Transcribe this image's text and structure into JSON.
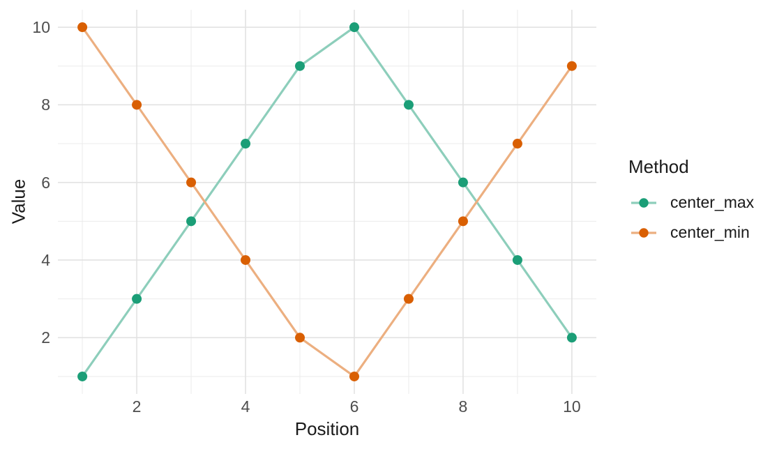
{
  "figure": {
    "background": "#ffffff"
  },
  "chart_data": {
    "type": "line",
    "title": "",
    "xlabel": "Position",
    "ylabel": "Value",
    "legend_title": "Method",
    "legend_position": "right",
    "grid": true,
    "xlim": [
      0.55,
      10.45
    ],
    "ylim": [
      0.55,
      10.45
    ],
    "x_ticks": [
      2,
      4,
      6,
      8,
      10
    ],
    "y_ticks": [
      2,
      4,
      6,
      8,
      10
    ],
    "x_minor": [
      1,
      3,
      5,
      7,
      9
    ],
    "y_minor": [
      1,
      3,
      5,
      7,
      9
    ],
    "x": [
      1,
      2,
      3,
      4,
      5,
      6,
      7,
      8,
      9,
      10
    ],
    "series": [
      {
        "name": "center_max",
        "values": [
          1,
          3,
          5,
          7,
          9,
          10,
          8,
          6,
          4,
          2
        ],
        "point_color": "#1b9e77",
        "line_color": "#8dcebb"
      },
      {
        "name": "center_min",
        "values": [
          10,
          8,
          6,
          4,
          2,
          1,
          3,
          5,
          7,
          9
        ],
        "point_color": "#d95f02",
        "line_color": "#ecaf80"
      }
    ],
    "colors": {
      "grid_major": "#e2e2e2",
      "grid_minor": "#ebebeb",
      "tick_label": "#4d4d4d",
      "axis_title": "#1a1a1a"
    }
  }
}
